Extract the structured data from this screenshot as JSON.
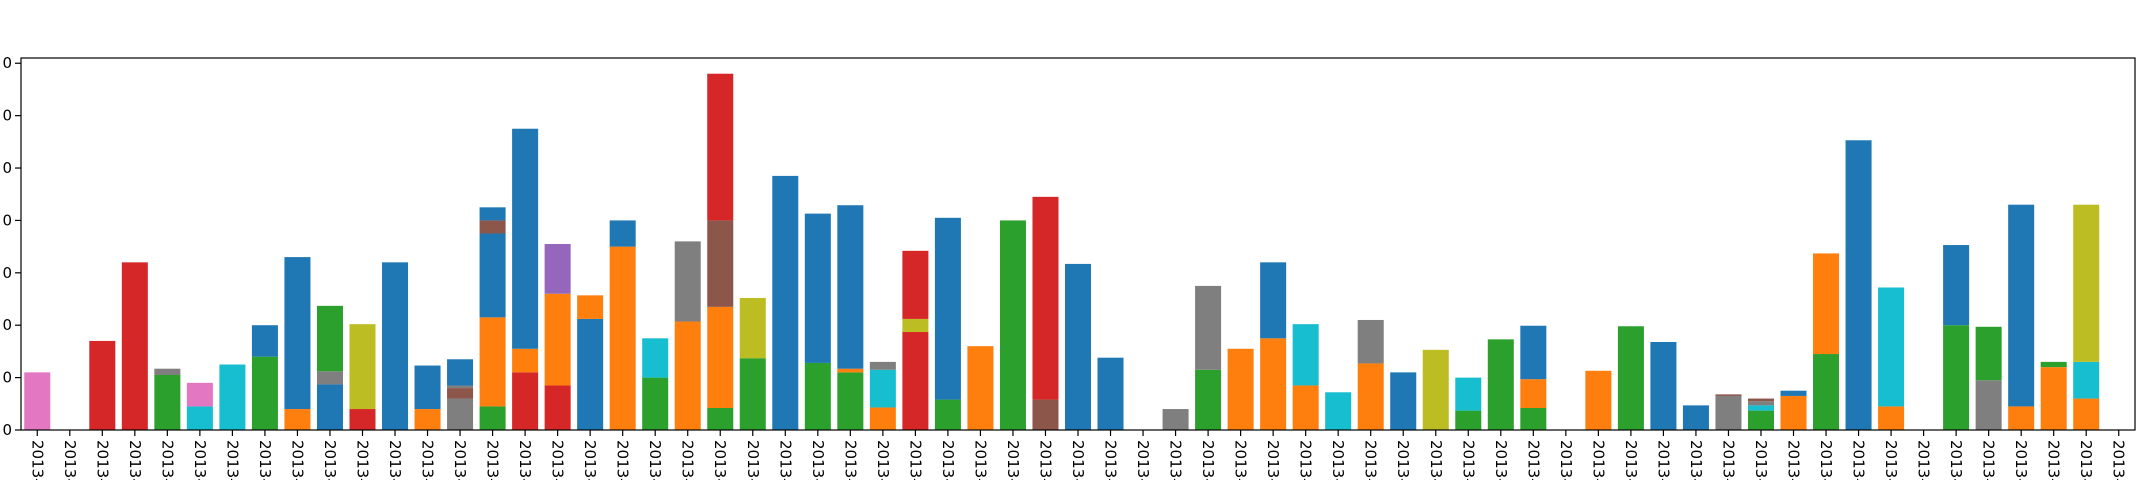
{
  "chart_data": {
    "type": "bar",
    "stacked": true,
    "title": "",
    "xlabel": "",
    "ylabel": "",
    "ylim": [
      0,
      7.1
    ],
    "y_ticks": [
      0,
      1,
      2,
      3,
      4,
      5,
      6,
      7
    ],
    "y_tick_text": [
      "0",
      "0",
      "0",
      "0",
      "0",
      "0",
      "0",
      "0"
    ],
    "x_tick_text": "2013-",
    "grid": false,
    "legend": "none",
    "colors": [
      "#1f77b4",
      "#ff7f0e",
      "#2ca02c",
      "#d62728",
      "#9467bd",
      "#8c564b",
      "#e377c2",
      "#7f7f7f",
      "#bcbd22",
      "#17becf"
    ],
    "bars": [
      [
        [
          6,
          1.1
        ]
      ],
      [],
      [
        [
          3,
          1.7
        ]
      ],
      [
        [
          3,
          3.2
        ]
      ],
      [
        [
          2,
          1.05
        ],
        [
          7,
          0.12
        ]
      ],
      [
        [
          9,
          0.45
        ],
        [
          6,
          0.45
        ]
      ],
      [
        [
          9,
          1.25
        ]
      ],
      [
        [
          2,
          1.4
        ],
        [
          0,
          0.6
        ]
      ],
      [
        [
          1,
          0.4
        ],
        [
          0,
          2.9
        ]
      ],
      [
        [
          0,
          0.87
        ],
        [
          7,
          0.25
        ],
        [
          2,
          1.25
        ]
      ],
      [
        [
          3,
          0.4
        ],
        [
          8,
          1.62
        ]
      ],
      [
        [
          0,
          3.2
        ]
      ],
      [
        [
          1,
          0.4
        ],
        [
          0,
          0.83
        ]
      ],
      [
        [
          7,
          0.6
        ],
        [
          5,
          0.2
        ],
        [
          7,
          0.05
        ],
        [
          0,
          0.5
        ]
      ],
      [
        [
          2,
          0.45
        ],
        [
          1,
          1.7
        ],
        [
          0,
          1.6
        ],
        [
          5,
          0.25
        ],
        [
          0,
          0.25
        ]
      ],
      [
        [
          3,
          1.1
        ],
        [
          1,
          0.45
        ],
        [
          0,
          4.2
        ]
      ],
      [
        [
          3,
          0.85
        ],
        [
          1,
          1.75
        ],
        [
          4,
          0.95
        ]
      ],
      [
        [
          0,
          2.12
        ],
        [
          1,
          0.45
        ]
      ],
      [
        [
          1,
          3.5
        ],
        [
          0,
          0.5
        ]
      ],
      [
        [
          2,
          1.0
        ],
        [
          9,
          0.75
        ]
      ],
      [
        [
          1,
          2.07
        ],
        [
          7,
          1.53
        ]
      ],
      [
        [
          2,
          0.42
        ],
        [
          1,
          1.93
        ],
        [
          5,
          1.65
        ],
        [
          3,
          2.8
        ]
      ],
      [
        [
          2,
          1.37
        ],
        [
          8,
          1.15
        ]
      ],
      [
        [
          0,
          4.85
        ]
      ],
      [
        [
          2,
          1.28
        ],
        [
          0,
          2.85
        ]
      ],
      [
        [
          2,
          1.1
        ],
        [
          1,
          0.07
        ],
        [
          0,
          3.12
        ]
      ],
      [
        [
          1,
          0.43
        ],
        [
          9,
          0.72
        ],
        [
          7,
          0.15
        ]
      ],
      [
        [
          3,
          1.87
        ],
        [
          8,
          0.25
        ],
        [
          3,
          1.3
        ]
      ],
      [
        [
          2,
          0.58
        ],
        [
          0,
          3.47
        ]
      ],
      [
        [
          1,
          1.6
        ]
      ],
      [
        [
          2,
          4.0
        ]
      ],
      [
        [
          5,
          0.58
        ],
        [
          3,
          3.87
        ]
      ],
      [
        [
          0,
          3.17
        ]
      ],
      [
        [
          0,
          1.38
        ]
      ],
      [],
      [
        [
          7,
          0.4
        ]
      ],
      [
        [
          2,
          1.15
        ],
        [
          7,
          1.6
        ]
      ],
      [
        [
          1,
          1.55
        ]
      ],
      [
        [
          1,
          1.75
        ],
        [
          0,
          1.45
        ]
      ],
      [
        [
          1,
          0.85
        ],
        [
          9,
          1.17
        ]
      ],
      [
        [
          9,
          0.72
        ]
      ],
      [
        [
          1,
          1.27
        ],
        [
          7,
          0.83
        ]
      ],
      [
        [
          0,
          1.1
        ]
      ],
      [
        [
          8,
          1.53
        ]
      ],
      [
        [
          2,
          0.37
        ],
        [
          9,
          0.63
        ]
      ],
      [
        [
          2,
          1.73
        ]
      ],
      [
        [
          2,
          0.42
        ],
        [
          1,
          0.55
        ],
        [
          0,
          1.02
        ]
      ],
      [],
      [
        [
          1,
          1.13
        ]
      ],
      [
        [
          2,
          1.98
        ]
      ],
      [
        [
          0,
          1.68
        ]
      ],
      [
        [
          0,
          0.47
        ]
      ],
      [
        [
          7,
          0.65
        ],
        [
          5,
          0.03
        ]
      ],
      [
        [
          2,
          0.37
        ],
        [
          9,
          0.1
        ],
        [
          7,
          0.08
        ],
        [
          5,
          0.05
        ]
      ],
      [
        [
          1,
          0.65
        ],
        [
          0,
          0.1
        ]
      ],
      [
        [
          2,
          1.45
        ],
        [
          1,
          1.92
        ]
      ],
      [
        [
          0,
          5.53
        ]
      ],
      [
        [
          1,
          0.45
        ],
        [
          9,
          2.27
        ]
      ],
      [],
      [
        [
          2,
          2.0
        ],
        [
          0,
          1.53
        ]
      ],
      [
        [
          7,
          0.95
        ],
        [
          2,
          1.02
        ]
      ],
      [
        [
          1,
          0.45
        ],
        [
          0,
          3.85
        ]
      ],
      [
        [
          1,
          1.2
        ],
        [
          2,
          0.1
        ]
      ],
      [
        [
          1,
          0.6
        ],
        [
          9,
          0.7
        ],
        [
          8,
          3.0
        ]
      ],
      []
    ]
  }
}
